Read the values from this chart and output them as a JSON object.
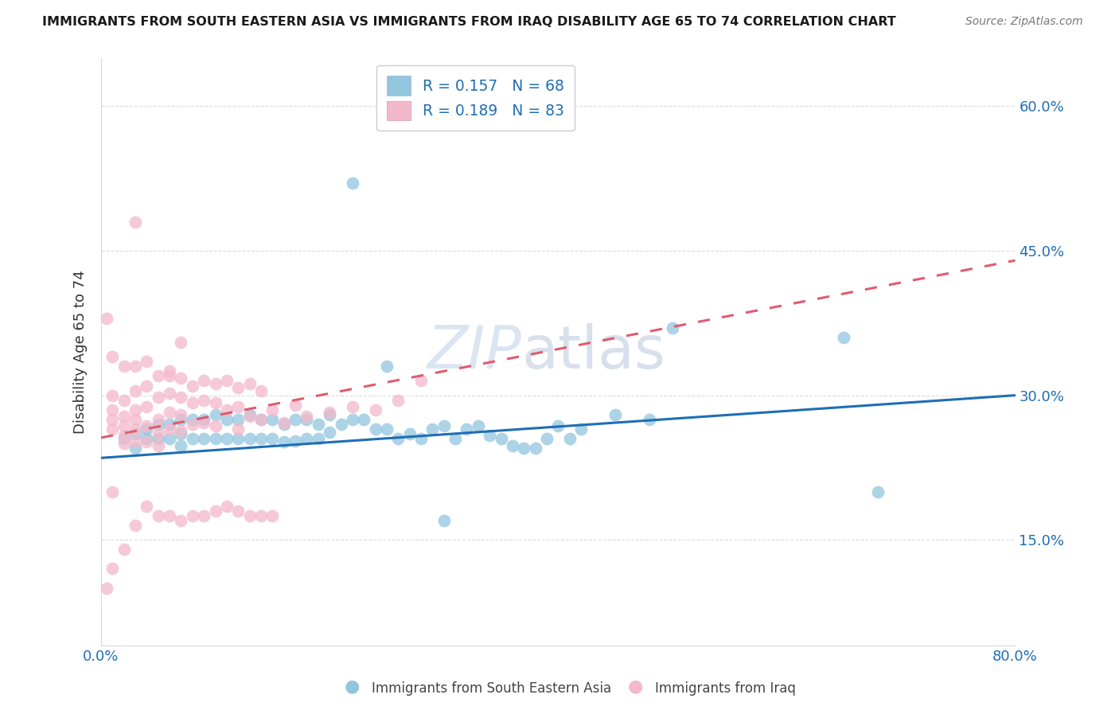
{
  "title": "IMMIGRANTS FROM SOUTH EASTERN ASIA VS IMMIGRANTS FROM IRAQ DISABILITY AGE 65 TO 74 CORRELATION CHART",
  "source": "Source: ZipAtlas.com",
  "ylabel": "Disability Age 65 to 74",
  "color_blue": "#92c5de",
  "color_pink": "#f4b8cb",
  "line_color_blue": "#1f6eb5",
  "line_color_pink": "#e05c6e",
  "watermark_zip": "ZIP",
  "watermark_atlas": "atlas",
  "legend_label1": "Immigrants from South Eastern Asia",
  "legend_label2": "Immigrants from Iraq",
  "legend_r1": "R = 0.157",
  "legend_n1": "N = 68",
  "legend_r2": "R = 0.189",
  "legend_n2": "N = 83",
  "xlim": [
    0.0,
    0.8
  ],
  "ylim": [
    0.04,
    0.65
  ],
  "yticks": [
    0.15,
    0.3,
    0.45,
    0.6
  ],
  "ytick_labels": [
    "15.0%",
    "30.0%",
    "45.0%",
    "60.0%"
  ],
  "xtick_labels": [
    "0.0%",
    "80.0%"
  ],
  "blue_trend_x0": 0.0,
  "blue_trend_y0": 0.235,
  "blue_trend_x1": 0.8,
  "blue_trend_y1": 0.3,
  "pink_trend_x0": 0.0,
  "pink_trend_y0": 0.256,
  "pink_trend_x1": 0.8,
  "pink_trend_y1": 0.44,
  "blue_pts_x": [
    0.02,
    0.03,
    0.03,
    0.04,
    0.04,
    0.05,
    0.05,
    0.06,
    0.06,
    0.07,
    0.07,
    0.07,
    0.08,
    0.08,
    0.09,
    0.09,
    0.1,
    0.1,
    0.11,
    0.11,
    0.12,
    0.12,
    0.13,
    0.13,
    0.14,
    0.14,
    0.15,
    0.15,
    0.16,
    0.16,
    0.17,
    0.17,
    0.18,
    0.18,
    0.19,
    0.19,
    0.2,
    0.2,
    0.21,
    0.22,
    0.23,
    0.24,
    0.25,
    0.26,
    0.27,
    0.28,
    0.29,
    0.3,
    0.31,
    0.32,
    0.33,
    0.34,
    0.35,
    0.36,
    0.37,
    0.38,
    0.39,
    0.4,
    0.41,
    0.42,
    0.45,
    0.48,
    0.22,
    0.5,
    0.65,
    0.68,
    0.25,
    0.3
  ],
  "blue_pts_y": [
    0.255,
    0.26,
    0.245,
    0.265,
    0.255,
    0.27,
    0.255,
    0.27,
    0.255,
    0.275,
    0.26,
    0.248,
    0.275,
    0.255,
    0.275,
    0.255,
    0.28,
    0.255,
    0.275,
    0.255,
    0.275,
    0.255,
    0.28,
    0.255,
    0.275,
    0.255,
    0.275,
    0.255,
    0.27,
    0.252,
    0.275,
    0.253,
    0.275,
    0.255,
    0.27,
    0.255,
    0.28,
    0.262,
    0.27,
    0.275,
    0.275,
    0.265,
    0.265,
    0.255,
    0.26,
    0.255,
    0.265,
    0.268,
    0.255,
    0.265,
    0.268,
    0.258,
    0.255,
    0.248,
    0.245,
    0.245,
    0.255,
    0.268,
    0.255,
    0.265,
    0.28,
    0.275,
    0.52,
    0.37,
    0.36,
    0.2,
    0.33,
    0.17
  ],
  "pink_pts_x": [
    0.005,
    0.01,
    0.01,
    0.01,
    0.01,
    0.01,
    0.02,
    0.02,
    0.02,
    0.02,
    0.02,
    0.02,
    0.03,
    0.03,
    0.03,
    0.03,
    0.03,
    0.03,
    0.04,
    0.04,
    0.04,
    0.04,
    0.04,
    0.05,
    0.05,
    0.05,
    0.05,
    0.05,
    0.06,
    0.06,
    0.06,
    0.06,
    0.07,
    0.07,
    0.07,
    0.07,
    0.08,
    0.08,
    0.08,
    0.09,
    0.09,
    0.09,
    0.1,
    0.1,
    0.1,
    0.11,
    0.11,
    0.12,
    0.12,
    0.12,
    0.13,
    0.13,
    0.14,
    0.14,
    0.15,
    0.16,
    0.17,
    0.18,
    0.2,
    0.22,
    0.24,
    0.26,
    0.28,
    0.005,
    0.01,
    0.01,
    0.02,
    0.03,
    0.04,
    0.05,
    0.06,
    0.07,
    0.07,
    0.08,
    0.09,
    0.1,
    0.11,
    0.12,
    0.13,
    0.14,
    0.15,
    0.03,
    0.06
  ],
  "pink_pts_y": [
    0.38,
    0.34,
    0.3,
    0.285,
    0.275,
    0.265,
    0.33,
    0.295,
    0.278,
    0.268,
    0.258,
    0.25,
    0.33,
    0.305,
    0.285,
    0.275,
    0.265,
    0.252,
    0.335,
    0.31,
    0.288,
    0.268,
    0.252,
    0.32,
    0.298,
    0.275,
    0.26,
    0.248,
    0.325,
    0.302,
    0.282,
    0.265,
    0.318,
    0.298,
    0.28,
    0.263,
    0.31,
    0.292,
    0.27,
    0.315,
    0.295,
    0.272,
    0.312,
    0.292,
    0.268,
    0.315,
    0.285,
    0.308,
    0.288,
    0.265,
    0.312,
    0.278,
    0.305,
    0.275,
    0.285,
    0.272,
    0.29,
    0.278,
    0.282,
    0.288,
    0.285,
    0.295,
    0.315,
    0.1,
    0.12,
    0.2,
    0.14,
    0.165,
    0.185,
    0.175,
    0.175,
    0.17,
    0.355,
    0.175,
    0.175,
    0.18,
    0.185,
    0.18,
    0.175,
    0.175,
    0.175,
    0.48,
    0.32
  ]
}
